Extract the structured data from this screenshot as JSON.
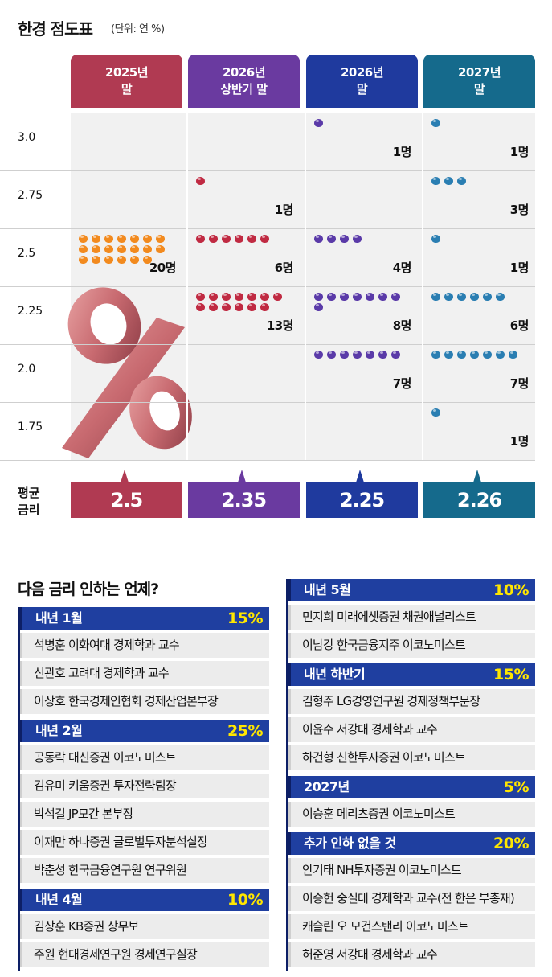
{
  "header": {
    "title": "한경 점도표",
    "unit": "(단위: 연 %)"
  },
  "avg_label": "평균\n금리",
  "chart_data": {
    "type": "table",
    "columns": [
      {
        "line1": "2025년",
        "line2": "말",
        "color": "#b03a52",
        "dot_color": "#f28a1e",
        "avg": "2.5"
      },
      {
        "line1": "2026년",
        "line2": "상반기 말",
        "color": "#6a3aa0",
        "dot_color": "#c02a42",
        "avg": "2.35"
      },
      {
        "line1": "2026년",
        "line2": "말",
        "color": "#1f3a9e",
        "dot_color": "#5a3aa8",
        "avg": "2.25"
      },
      {
        "line1": "2027년",
        "line2": "말",
        "color": "#156a8c",
        "dot_color": "#2a7eb2",
        "avg": "2.26"
      }
    ],
    "rates": [
      "3.0",
      "2.75",
      "2.5",
      "2.25",
      "2.0",
      "1.75"
    ],
    "counts": [
      [
        0,
        0,
        20,
        0,
        0,
        0
      ],
      [
        0,
        1,
        6,
        13,
        0,
        0
      ],
      [
        1,
        0,
        4,
        8,
        7,
        0
      ],
      [
        1,
        3,
        1,
        6,
        7,
        1
      ]
    ],
    "count_suffix": "명"
  },
  "survey": {
    "title": "다음 금리 인하는 언제?",
    "left": [
      {
        "label": "내년 1월",
        "pct": "15%",
        "people": [
          "석병훈 이화여대 경제학과 교수",
          "신관호 고려대 경제학과 교수",
          "이상호 한국경제인협회 경제산업본부장"
        ]
      },
      {
        "label": "내년 2월",
        "pct": "25%",
        "people": [
          "공동락 대신증권 이코노미스트",
          "김유미 키움증권 투자전략팀장",
          "박석길 JP모간 본부장",
          "이재만 하나증권 글로벌투자분석실장",
          "박춘성 한국금융연구원 연구위원"
        ]
      },
      {
        "label": "내년 4월",
        "pct": "10%",
        "people": [
          "김상훈 KB증권 상무보",
          "주원 현대경제연구원 경제연구실장"
        ]
      }
    ],
    "right": [
      {
        "label": "내년 5월",
        "pct": "10%",
        "people": [
          "민지희 미래에셋증권 채권애널리스트",
          "이남강 한국금융지주 이코노미스트"
        ]
      },
      {
        "label": "내년 하반기",
        "pct": "15%",
        "people": [
          "김형주 LG경영연구원 경제정책부문장",
          "이윤수 서강대 경제학과 교수",
          "하건형 신한투자증권 이코노미스트"
        ]
      },
      {
        "label": "2027년",
        "pct": "5%",
        "people": [
          "이승훈 메리츠증권 이코노미스트"
        ]
      },
      {
        "label": "추가 인하 없을 것",
        "pct": "20%",
        "people": [
          "안기태 NH투자증권 이코노미스트",
          "이승헌 숭실대 경제학과 교수(전 한은 부총재)",
          "캐슬린 오 모건스탠리 이코노미스트",
          "허준영 서강대 경제학과 교수"
        ]
      }
    ]
  }
}
